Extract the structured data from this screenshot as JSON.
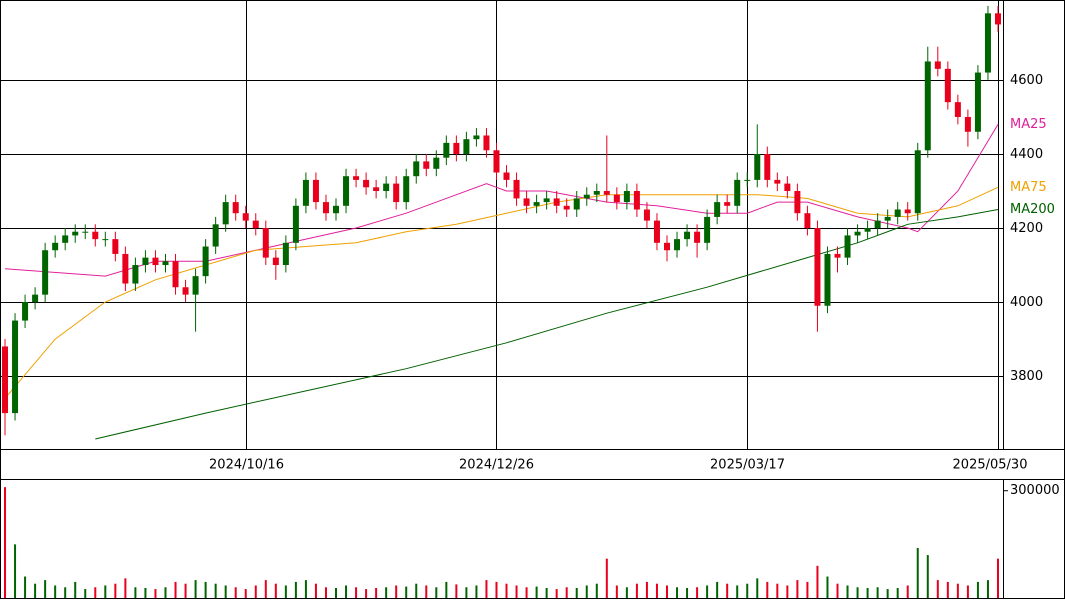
{
  "chart_data": [
    {
      "type": "candlestick",
      "up_color": "#006400",
      "down_color": "#e8001c",
      "xlim": [
        -0.5,
        99.5
      ],
      "xticks": [
        {
          "value": 24,
          "label": "2024/10/16"
        },
        {
          "value": 49,
          "label": "2024/12/26"
        },
        {
          "value": 74,
          "label": "2025/03/17"
        },
        {
          "value": 99,
          "label": "2025/05/30"
        }
      ],
      "ylim": [
        3603,
        4816
      ],
      "yticks": [
        3800,
        4000,
        4200,
        4400,
        4600
      ],
      "grid": true,
      "open": [
        3880,
        3700,
        3950,
        4000,
        4020,
        4140,
        4160,
        4180,
        4190,
        4190,
        4170,
        4170,
        4130,
        4050,
        4100,
        4120,
        4100,
        4110,
        4040,
        4020,
        4070,
        4150,
        4210,
        4270,
        4240,
        4220,
        4200,
        4120,
        4100,
        4160,
        4260,
        4330,
        4270,
        4240,
        4260,
        4340,
        4330,
        4310,
        4300,
        4320,
        4270,
        4340,
        4380,
        4360,
        4390,
        4430,
        4400,
        4440,
        4450,
        4410,
        4350,
        4330,
        4280,
        4260,
        4270,
        4280,
        4260,
        4250,
        4280,
        4290,
        4300,
        4290,
        4270,
        4300,
        4250,
        4220,
        4160,
        4140,
        4170,
        4190,
        4160,
        4230,
        4270,
        4260,
        4330,
        4330,
        4400,
        4330,
        4320,
        4300,
        4240,
        4200,
        3990,
        4130,
        4120,
        4180,
        4190,
        4200,
        4220,
        4230,
        4250,
        4240,
        4410,
        4650,
        4630,
        4540,
        4500,
        4460,
        4620,
        4780
      ],
      "high": [
        3900,
        3970,
        4020,
        4040,
        4160,
        4180,
        4200,
        4210,
        4210,
        4210,
        4190,
        4190,
        4150,
        4120,
        4140,
        4140,
        4130,
        4130,
        4060,
        4090,
        4170,
        4230,
        4290,
        4290,
        4260,
        4240,
        4220,
        4140,
        4180,
        4280,
        4350,
        4350,
        4290,
        4280,
        4360,
        4360,
        4350,
        4330,
        4340,
        4340,
        4360,
        4400,
        4400,
        4410,
        4450,
        4450,
        4460,
        4470,
        4470,
        4430,
        4370,
        4350,
        4300,
        4290,
        4300,
        4300,
        4280,
        4300,
        4310,
        4320,
        4450,
        4310,
        4320,
        4320,
        4270,
        4240,
        4180,
        4190,
        4210,
        4210,
        4250,
        4290,
        4290,
        4350,
        4350,
        4480,
        4420,
        4350,
        4340,
        4320,
        4260,
        4220,
        4150,
        4150,
        4200,
        4210,
        4220,
        4240,
        4250,
        4270,
        4270,
        4430,
        4690,
        4690,
        4650,
        4560,
        4520,
        4640,
        4800,
        4800
      ],
      "low": [
        3640,
        3680,
        3930,
        3980,
        4000,
        4120,
        4140,
        4160,
        4170,
        4150,
        4150,
        4110,
        4030,
        4030,
        4080,
        4080,
        4080,
        4020,
        4000,
        3920,
        4050,
        4130,
        4190,
        4220,
        4200,
        4180,
        4100,
        4060,
        4080,
        4140,
        4240,
        4250,
        4220,
        4220,
        4240,
        4310,
        4290,
        4280,
        4280,
        4250,
        4250,
        4320,
        4340,
        4340,
        4370,
        4380,
        4380,
        4420,
        4390,
        4330,
        4310,
        4260,
        4240,
        4240,
        4250,
        4240,
        4230,
        4230,
        4260,
        4270,
        4270,
        4250,
        4250,
        4230,
        4200,
        4140,
        4110,
        4120,
        4150,
        4120,
        4140,
        4210,
        4240,
        4240,
        4310,
        4310,
        4310,
        4300,
        4280,
        4220,
        4180,
        3920,
        3970,
        4080,
        4100,
        4160,
        4170,
        4180,
        4200,
        4210,
        4220,
        4220,
        4390,
        4610,
        4520,
        4480,
        4420,
        4440,
        4600,
        4730
      ],
      "close": [
        3700,
        3950,
        4000,
        4020,
        4140,
        4160,
        4180,
        4190,
        4190,
        4170,
        4170,
        4130,
        4050,
        4100,
        4120,
        4100,
        4110,
        4040,
        4020,
        4070,
        4150,
        4210,
        4270,
        4240,
        4220,
        4200,
        4120,
        4100,
        4160,
        4260,
        4330,
        4270,
        4240,
        4260,
        4340,
        4330,
        4310,
        4300,
        4320,
        4270,
        4340,
        4380,
        4360,
        4390,
        4430,
        4400,
        4440,
        4450,
        4410,
        4350,
        4330,
        4280,
        4260,
        4270,
        4280,
        4260,
        4250,
        4280,
        4290,
        4300,
        4290,
        4270,
        4300,
        4250,
        4220,
        4160,
        4140,
        4170,
        4190,
        4160,
        4230,
        4270,
        4260,
        4330,
        4330,
        4400,
        4330,
        4320,
        4300,
        4240,
        4200,
        3990,
        4130,
        4120,
        4180,
        4190,
        4200,
        4220,
        4230,
        4250,
        4240,
        4410,
        4650,
        4630,
        4540,
        4500,
        4460,
        4620,
        4780,
        4750
      ],
      "series": [
        {
          "name": "MA25",
          "color": "#e0209a",
          "x": [
            0,
            10,
            15,
            20,
            25,
            30,
            35,
            40,
            45,
            48,
            50,
            54,
            60,
            65,
            70,
            74,
            77,
            80,
            85,
            90,
            91,
            95,
            99
          ],
          "values": [
            4090,
            4070,
            4110,
            4110,
            4140,
            4170,
            4200,
            4240,
            4290,
            4320,
            4300,
            4300,
            4270,
            4260,
            4240,
            4240,
            4270,
            4270,
            4230,
            4200,
            4190,
            4300,
            4480
          ]
        },
        {
          "name": "MA75",
          "color": "#f0a000",
          "x": [
            0,
            5,
            10,
            15,
            20,
            25,
            30,
            35,
            40,
            45,
            50,
            55,
            60,
            65,
            70,
            75,
            80,
            85,
            90,
            95,
            99
          ],
          "values": [
            3740,
            3900,
            4000,
            4060,
            4100,
            4140,
            4150,
            4160,
            4190,
            4210,
            4240,
            4270,
            4290,
            4290,
            4290,
            4290,
            4280,
            4240,
            4230,
            4260,
            4310
          ]
        },
        {
          "name": "MA200",
          "color": "#006000",
          "x": [
            9,
            20,
            30,
            40,
            50,
            60,
            70,
            80,
            85,
            90,
            95,
            99
          ],
          "values": [
            3630,
            3700,
            3760,
            3820,
            3890,
            3970,
            4040,
            4120,
            4160,
            4210,
            4230,
            4250
          ]
        }
      ]
    },
    {
      "type": "bar",
      "ylim": [
        0,
        330000
      ],
      "yticks": [
        300000
      ],
      "values": [
        310000,
        150000,
        60000,
        40000,
        50000,
        35000,
        30000,
        45000,
        25000,
        30000,
        35000,
        40000,
        55000,
        30000,
        28000,
        25000,
        30000,
        45000,
        40000,
        50000,
        45000,
        40000,
        35000,
        30000,
        25000,
        35000,
        50000,
        40000,
        35000,
        45000,
        50000,
        40000,
        30000,
        28000,
        35000,
        30000,
        25000,
        28000,
        30000,
        35000,
        32000,
        40000,
        35000,
        30000,
        45000,
        38000,
        30000,
        35000,
        50000,
        45000,
        40000,
        35000,
        30000,
        32000,
        28000,
        25000,
        30000,
        28000,
        35000,
        40000,
        110000,
        35000,
        30000,
        40000,
        45000,
        40000,
        35000,
        30000,
        28000,
        30000,
        35000,
        45000,
        40000,
        35000,
        40000,
        55000,
        45000,
        40000,
        35000,
        50000,
        45000,
        90000,
        60000,
        40000,
        35000,
        30000,
        28000,
        30000,
        25000,
        28000,
        35000,
        140000,
        120000,
        50000,
        45000,
        40000,
        35000,
        45000,
        50000,
        110000
      ]
    }
  ]
}
